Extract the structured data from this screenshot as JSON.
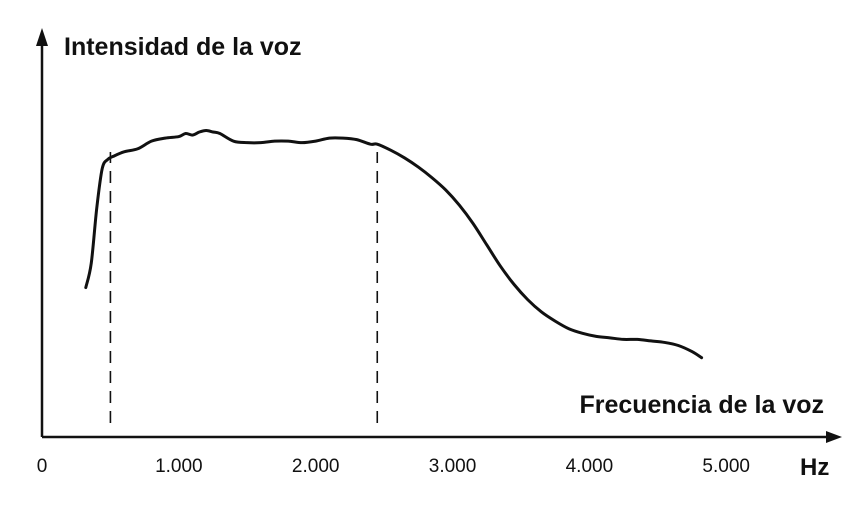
{
  "chart_data": {
    "type": "line",
    "ylabel": "Intensidad de la voz",
    "xlabel": "Frecuencia de la voz",
    "x_unit": "Hz",
    "xlim": [
      0,
      5700
    ],
    "ylim": [
      0,
      10
    ],
    "x_ticks": [
      {
        "value": 0,
        "label": "0"
      },
      {
        "value": 1000,
        "label": "1.000"
      },
      {
        "value": 2000,
        "label": "2.000"
      },
      {
        "value": 3000,
        "label": "3.000"
      },
      {
        "value": 4000,
        "label": "4.000"
      },
      {
        "value": 5000,
        "label": "5.000"
      }
    ],
    "reference_lines_x": [
      500,
      2450
    ],
    "grid": false,
    "legend": "none",
    "colors": {
      "line": "#111111",
      "axis": "#111111"
    },
    "series": [
      {
        "x": [
          320,
          360,
          400,
          440,
          480,
          520,
          600,
          700,
          800,
          900,
          1000,
          1050,
          1100,
          1150,
          1200,
          1250,
          1300,
          1400,
          1500,
          1600,
          1700,
          1800,
          1900,
          2000,
          2100,
          2200,
          2300,
          2400,
          2450,
          2550,
          2650,
          2750,
          2850,
          2950,
          3050,
          3150,
          3250,
          3350,
          3450,
          3550,
          3650,
          3750,
          3850,
          3950,
          4050,
          4150,
          4250,
          4350,
          4450,
          4550,
          4650,
          4750,
          4820
        ],
        "y": [
          4.9,
          5.7,
          7.5,
          8.8,
          9.1,
          9.2,
          9.35,
          9.45,
          9.7,
          9.8,
          9.85,
          9.95,
          9.9,
          10.0,
          10.05,
          10.0,
          9.95,
          9.7,
          9.65,
          9.65,
          9.7,
          9.7,
          9.65,
          9.7,
          9.8,
          9.8,
          9.75,
          9.6,
          9.6,
          9.4,
          9.15,
          8.85,
          8.5,
          8.1,
          7.6,
          7.0,
          6.3,
          5.6,
          5.0,
          4.5,
          4.1,
          3.8,
          3.55,
          3.4,
          3.3,
          3.25,
          3.2,
          3.2,
          3.15,
          3.1,
          3.0,
          2.8,
          2.6
        ]
      }
    ]
  }
}
